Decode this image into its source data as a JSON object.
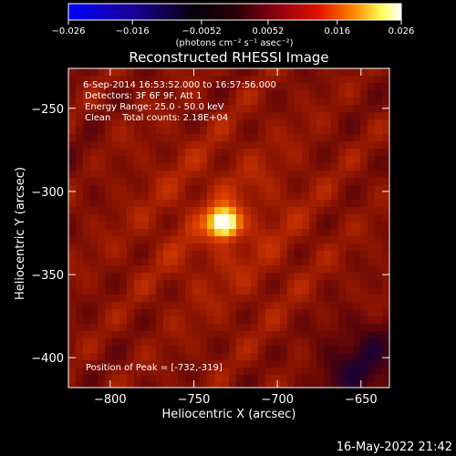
{
  "colorbar": {
    "ticks": [
      "-0.026",
      "-0.016",
      "-0.0052",
      "0.0052",
      "0.016",
      "0.026"
    ],
    "tick_values": [
      -0.026,
      -0.016,
      -0.0052,
      0.0052,
      0.016,
      0.026
    ],
    "range": [
      -0.026,
      0.026
    ],
    "unit_label": "(photons cm⁻² s⁻¹ asec⁻²)",
    "colors": [
      "#0000ff",
      "#1a0090",
      "#000000",
      "#650025",
      "#cc0000",
      "#ff7a00",
      "#ffff55",
      "#ffffff"
    ]
  },
  "chart_data": {
    "type": "heatmap",
    "title": "Reconstructed RHESSI Image",
    "xlabel": "Heliocentric X (arcsec)",
    "ylabel": "Heliocentric Y (arcsec)",
    "xlim": [
      -825,
      -633
    ],
    "ylim": [
      -418,
      -226
    ],
    "x_ticks": [
      -800,
      -750,
      -700,
      -650
    ],
    "y_ticks": [
      -250,
      -300,
      -350,
      -400
    ],
    "x_tick_labels": [
      "−800",
      "−750",
      "−700",
      "−650"
    ],
    "y_tick_labels": [
      "−250",
      "−300",
      "−350",
      "−400"
    ],
    "peak": {
      "x": -732,
      "y": -319
    },
    "annotations": [
      "6-Sep-2014 16:53:52.000 to 16:57:56.000",
      "Detectors: 3F 6F 9F, Att 1",
      "Energy Range: 25.0 - 50.0 keV",
      "Clean    Total counts: 2.18E+04"
    ],
    "peak_label": "Position of Peak = [-732,-319]"
  },
  "timestamp": "16-May-2022 21:42"
}
